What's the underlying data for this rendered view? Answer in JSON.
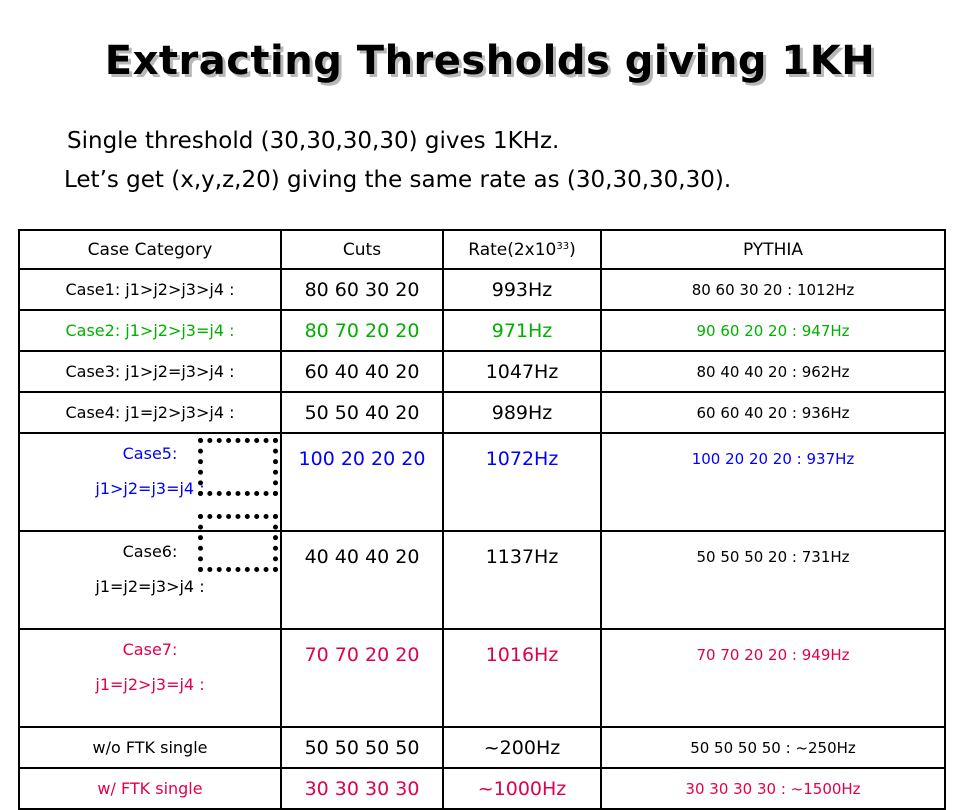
{
  "title": "Extracting Thresholds giving 1KH",
  "intro": {
    "line1": "Single threshold (30,30,30,30) gives 1KHz.",
    "line2": "Let’s get (x,y,z,20) giving the same rate as (30,30,30,30)."
  },
  "table": {
    "headers": {
      "category": "Case Category",
      "cuts": "Cuts",
      "rate_prefix": "Rate(2x10",
      "rate_exp": "33",
      "rate_suffix": ")",
      "pythia": "PYTHIA"
    },
    "rows": [
      {
        "category": "Case1: j1>j2>j3>j4 :",
        "cuts": "80 60 30 20",
        "rate": "993Hz",
        "pythia": "80 60 30 20 : 1012Hz",
        "color": "#000000"
      },
      {
        "category": "Case2: j1>j2>j3=j4 :",
        "cuts": "80 70 20 20",
        "rate": "971Hz",
        "pythia": "90 60 20 20 : 947Hz",
        "color": "#00b000"
      },
      {
        "category": "Case3: j1>j2=j3>j4 :",
        "cuts": "60 40 40 20",
        "rate": "1047Hz",
        "pythia": "80 40 40 20 : 962Hz",
        "color": "#000000"
      },
      {
        "category": "Case4: j1=j2>j3>j4 :",
        "cuts": "50 50 40 20",
        "rate": "989Hz",
        "pythia": "60 60 40 20 : 936Hz",
        "color": "#000000"
      },
      {
        "category_l1": "Case5:",
        "category_l2": "j1>j2=j3=j4 :",
        "cuts": "100 20 20 20",
        "rate": "1072Hz",
        "pythia": "100 20 20 20 : 937Hz",
        "color": "#0000ff"
      },
      {
        "category_l1": "Case6:",
        "category_l2": "j1=j2=j3>j4 :",
        "cuts": "40 40 40 20",
        "rate": "1137Hz",
        "pythia": "50 50 50 20 : 731Hz",
        "color": "#000000"
      },
      {
        "category_l1": "Case7:",
        "category_l2": "j1=j2>j3=j4 :",
        "cuts": "70 70 20 20",
        "rate": "1016Hz",
        "pythia": "70 70 20 20 : 949Hz",
        "color": "#e00050"
      },
      {
        "category": "w/o FTK single",
        "cuts": "50 50 50 50",
        "rate": "~200Hz",
        "pythia": "50 50 50 50 : ~250Hz",
        "color": "#000000"
      },
      {
        "category": "w/ FTK single",
        "cuts": "30 30 30 30",
        "rate": "~1000Hz",
        "pythia": "30 30 30 30 : ~1500Hz",
        "color": "#e00050"
      }
    ]
  }
}
